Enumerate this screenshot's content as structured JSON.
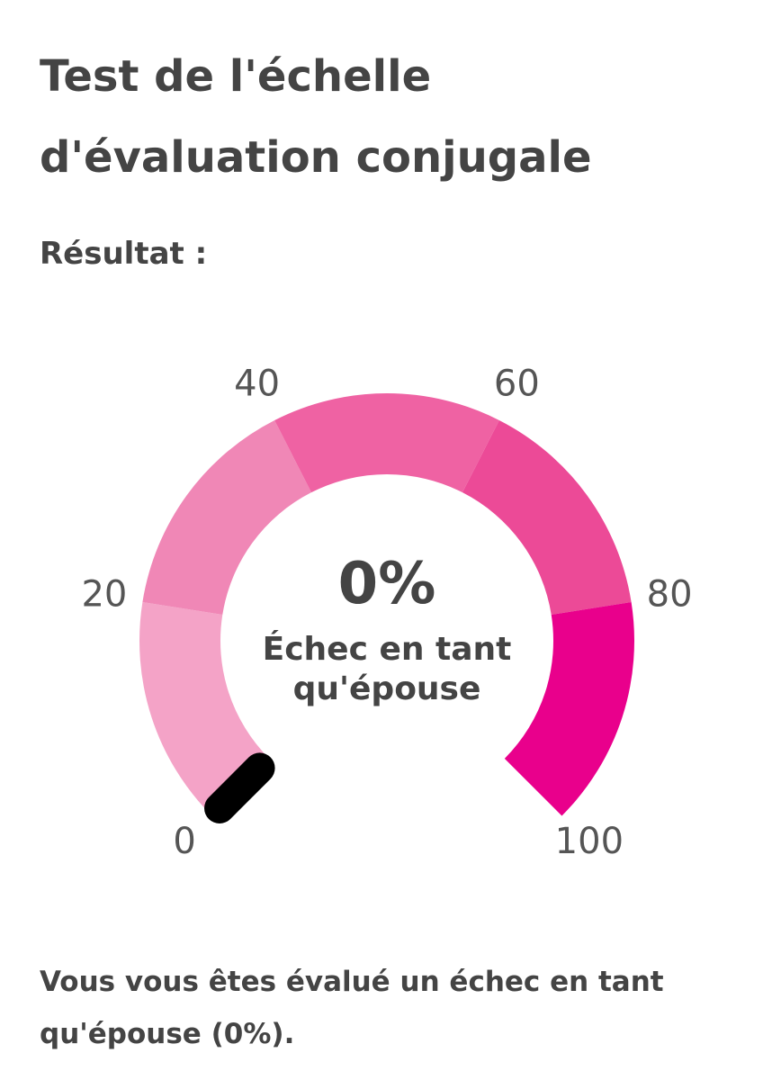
{
  "title": "Test de l'échelle d'évaluation conjugale",
  "subtitle": "Résultat :",
  "chart_data": {
    "type": "gauge",
    "value": 0,
    "value_label": "0%",
    "label": "Échec en tant qu'épouse",
    "lim": [
      0,
      100
    ],
    "ticks": [
      0,
      20,
      40,
      60,
      80,
      100
    ],
    "colors": [
      "#f4a3c7",
      "#f087b6",
      "#ef62a3",
      "#ec4a97",
      "#e9008c"
    ],
    "needle_color": "#000000"
  },
  "summary": "Vous vous êtes évalué un échec en tant qu'épouse (0%)."
}
